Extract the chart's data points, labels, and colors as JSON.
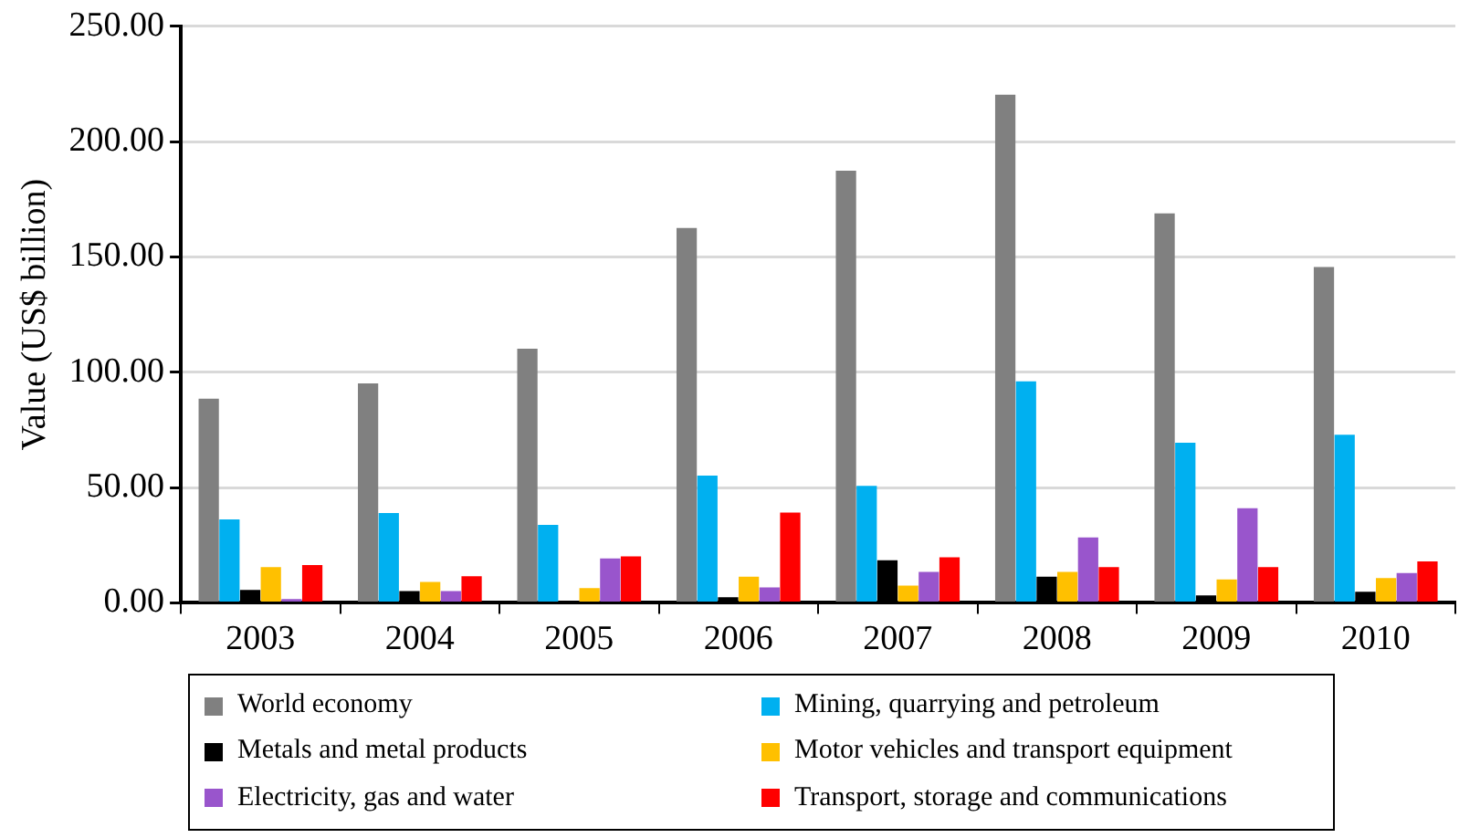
{
  "chart_data": {
    "type": "bar",
    "ylabel": "Value (US$ billion)",
    "categories": [
      "2003",
      "2004",
      "2005",
      "2006",
      "2007",
      "2008",
      "2009",
      "2010"
    ],
    "series": [
      {
        "name": "World economy",
        "color": "#808080",
        "values": [
          88.5,
          95.2,
          110.2,
          162.5,
          187.4,
          220.3,
          168.9,
          145.6
        ]
      },
      {
        "name": "Mining, quarrying and petroleum",
        "color": "#00b0f0",
        "values": [
          36.2,
          38.9,
          33.8,
          55.2,
          50.7,
          96.0,
          69.4,
          72.9
        ]
      },
      {
        "name": "Metals and metal products",
        "color": "#000000",
        "values": [
          5.6,
          5.1,
          null,
          2.4,
          18.5,
          11.3,
          3.2,
          4.8
        ]
      },
      {
        "name": "Motor vehicles and transport equipment",
        "color": "#ffc000",
        "values": [
          15.5,
          9.1,
          6.4,
          11.3,
          7.5,
          13.4,
          10.2,
          10.7
        ]
      },
      {
        "name": "Electricity, gas and water",
        "color": "#9955cc",
        "values": [
          1.6,
          5.1,
          19.3,
          6.7,
          13.4,
          28.4,
          41.0,
          12.9
        ]
      },
      {
        "name": "Transport, storage and communications",
        "color": "#ff0000",
        "values": [
          16.4,
          11.5,
          20.1,
          39.1,
          19.8,
          15.5,
          15.5,
          18.0
        ]
      }
    ],
    "ylim": [
      0,
      250
    ],
    "yticks": [
      {
        "value": 0,
        "label": "0.00"
      },
      {
        "value": 50,
        "label": "50.00"
      },
      {
        "value": 100,
        "label": "100.00"
      },
      {
        "value": 150,
        "label": "150.00"
      },
      {
        "value": 200,
        "label": "200.00"
      },
      {
        "value": 250,
        "label": "250.00"
      }
    ],
    "grid": "y",
    "legend": "bottom"
  }
}
